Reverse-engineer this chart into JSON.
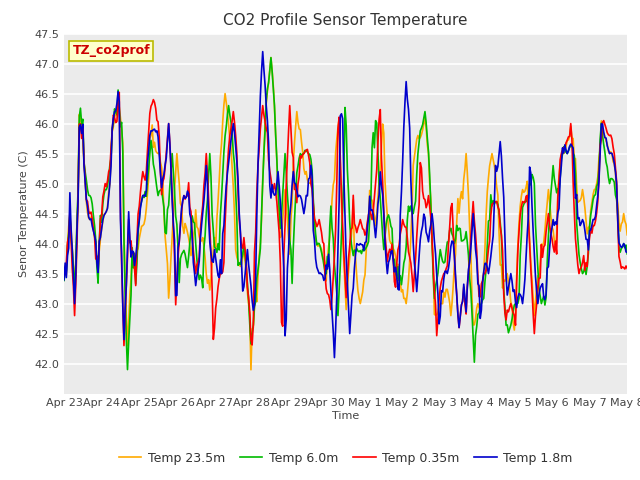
{
  "title": "CO2 Profile Sensor Temperature",
  "ylabel": "Senor Temperature (C)",
  "xlabel": "Time",
  "annotation": "TZ_co2prof",
  "ylim": [
    41.5,
    47.5
  ],
  "yticks": [
    42.0,
    42.5,
    43.0,
    43.5,
    44.0,
    44.5,
    45.0,
    45.5,
    46.0,
    46.5,
    47.0,
    47.5
  ],
  "xtick_labels": [
    "Apr 23",
    "Apr 24",
    "Apr 25",
    "Apr 26",
    "Apr 27",
    "Apr 28",
    "Apr 29",
    "Apr 30",
    "May 1",
    "May 2",
    "May 3",
    "May 4",
    "May 5",
    "May 6",
    "May 7",
    "May 8"
  ],
  "series_labels": [
    "Temp 0.35m",
    "Temp 1.8m",
    "Temp 6.0m",
    "Temp 23.5m"
  ],
  "series_colors": [
    "#ff0000",
    "#0000cc",
    "#00bb00",
    "#ffaa00"
  ],
  "fig_bg_color": "#ffffff",
  "plot_bg_color": "#ebebeb",
  "grid_color": "#ffffff",
  "title_fontsize": 11,
  "label_fontsize": 8,
  "tick_fontsize": 8,
  "legend_fontsize": 9,
  "linewidth": 1.2,
  "n_points": 480
}
